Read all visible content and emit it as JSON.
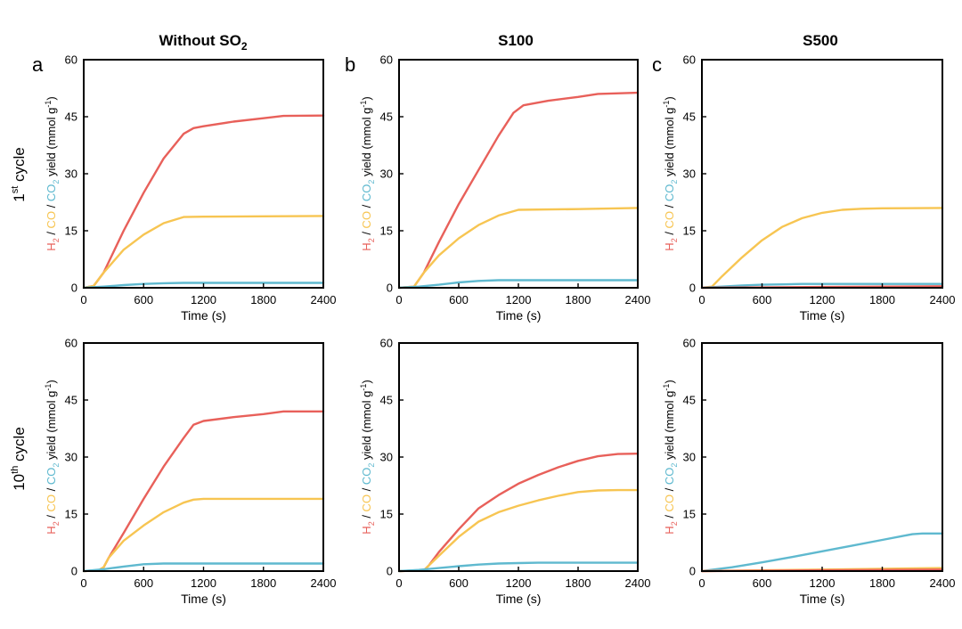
{
  "figure": {
    "column_titles": [
      {
        "main": "Without SO",
        "sub": "2"
      },
      {
        "main": "S100",
        "sub": ""
      },
      {
        "main": "S500",
        "sub": ""
      }
    ],
    "row_titles": [
      {
        "pre": "1",
        "sup": "st",
        "post": " cycle"
      },
      {
        "pre": "10",
        "sup": "th",
        "post": " cycle"
      }
    ],
    "panel_letters": [
      "a",
      "b",
      "c"
    ],
    "ylabel_parts": [
      {
        "text": "H",
        "color": "#e8605a"
      },
      {
        "text": "2",
        "color": "#e8605a",
        "sub": true
      },
      {
        "text": " / ",
        "color": "#000000"
      },
      {
        "text": "CO",
        "color": "#f7c552"
      },
      {
        "text": " / ",
        "color": "#000000"
      },
      {
        "text": "CO",
        "color": "#5fb9cf"
      },
      {
        "text": "2",
        "color": "#5fb9cf",
        "sub": true
      },
      {
        "text": " yield (mmol g",
        "color": "#000000"
      },
      {
        "text": "-1",
        "color": "#000000",
        "sup": true
      },
      {
        "text": ")",
        "color": "#000000"
      }
    ],
    "xlabel": "Time (s)"
  },
  "chart_data": [
    {
      "type": "line",
      "panel": "a-1st",
      "column": "Without SO2",
      "row": "1st cycle",
      "xlabel": "Time (s)",
      "ylabel": "H2 / CO / CO2 yield (mmol g-1)",
      "xlim": [
        0,
        2400
      ],
      "ylim": [
        0,
        60
      ],
      "xticks": [
        0,
        600,
        1200,
        1800,
        2400
      ],
      "yticks": [
        0,
        15,
        30,
        45,
        60
      ],
      "series": [
        {
          "name": "H2",
          "color": "#e8605a",
          "x": [
            0,
            100,
            200,
            400,
            600,
            800,
            1000,
            1100,
            1200,
            1500,
            1800,
            2000,
            2400
          ],
          "y": [
            0,
            0.5,
            4,
            15,
            25,
            34,
            40.5,
            42,
            42.5,
            43.7,
            44.6,
            45.2,
            45.3
          ]
        },
        {
          "name": "CO",
          "color": "#f7c552",
          "x": [
            0,
            100,
            200,
            400,
            600,
            800,
            1000,
            1200,
            1800,
            2400
          ],
          "y": [
            0,
            0.5,
            4,
            10,
            14,
            17,
            18.6,
            18.7,
            18.8,
            18.9
          ]
        },
        {
          "name": "CO2",
          "color": "#5fb9cf",
          "x": [
            0,
            200,
            400,
            600,
            800,
            1000,
            2400
          ],
          "y": [
            0,
            0.3,
            0.7,
            1,
            1.2,
            1.3,
            1.3
          ]
        }
      ]
    },
    {
      "type": "line",
      "panel": "b-1st",
      "column": "S100",
      "row": "1st cycle",
      "xlabel": "Time (s)",
      "ylabel": "H2 / CO / CO2 yield (mmol g-1)",
      "xlim": [
        0,
        2400
      ],
      "ylim": [
        0,
        60
      ],
      "xticks": [
        0,
        600,
        1200,
        1800,
        2400
      ],
      "yticks": [
        0,
        15,
        30,
        45,
        60
      ],
      "series": [
        {
          "name": "H2",
          "color": "#e8605a",
          "x": [
            0,
            150,
            250,
            400,
            600,
            800,
            1000,
            1150,
            1250,
            1500,
            1800,
            2000,
            2400
          ],
          "y": [
            0,
            0.3,
            4,
            12,
            22,
            31,
            40,
            46,
            48,
            49.2,
            50.2,
            51,
            51.3
          ]
        },
        {
          "name": "CO",
          "color": "#f7c552",
          "x": [
            0,
            150,
            250,
            400,
            600,
            800,
            1000,
            1200,
            1800,
            2400
          ],
          "y": [
            0,
            0.3,
            4,
            8.5,
            13,
            16.5,
            19,
            20.5,
            20.7,
            21
          ]
        },
        {
          "name": "CO2",
          "color": "#5fb9cf",
          "x": [
            0,
            200,
            400,
            600,
            800,
            1000,
            2400
          ],
          "y": [
            0,
            0.3,
            0.8,
            1.4,
            1.8,
            2,
            2
          ]
        }
      ]
    },
    {
      "type": "line",
      "panel": "c-1st",
      "column": "S500",
      "row": "1st cycle",
      "xlabel": "Time (s)",
      "ylabel": "H2 / CO / CO2 yield (mmol g-1)",
      "xlim": [
        0,
        2400
      ],
      "ylim": [
        0,
        60
      ],
      "xticks": [
        0,
        600,
        1200,
        1800,
        2400
      ],
      "yticks": [
        0,
        15,
        30,
        45,
        60
      ],
      "series": [
        {
          "name": "CO",
          "color": "#f7c552",
          "x": [
            0,
            100,
            200,
            400,
            600,
            800,
            1000,
            1200,
            1400,
            1600,
            1800,
            2400
          ],
          "y": [
            0,
            0.3,
            3,
            8,
            12.5,
            16,
            18.3,
            19.7,
            20.5,
            20.8,
            20.9,
            21
          ]
        },
        {
          "name": "CO2",
          "color": "#5fb9cf",
          "x": [
            0,
            200,
            400,
            600,
            800,
            1000,
            2400
          ],
          "y": [
            0,
            0.3,
            0.6,
            0.8,
            0.9,
            1,
            1
          ]
        },
        {
          "name": "H2",
          "color": "#e8605a",
          "x": [
            0,
            600,
            1200,
            1800,
            2400
          ],
          "y": [
            0,
            0.1,
            0.2,
            0.3,
            0.4
          ]
        }
      ]
    },
    {
      "type": "line",
      "panel": "a-10th",
      "column": "Without SO2",
      "row": "10th cycle",
      "xlabel": "Time (s)",
      "ylabel": "H2 / CO / CO2 yield (mmol g-1)",
      "xlim": [
        0,
        2400
      ],
      "ylim": [
        0,
        60
      ],
      "xticks": [
        0,
        600,
        1200,
        1800,
        2400
      ],
      "yticks": [
        0,
        15,
        30,
        45,
        60
      ],
      "series": [
        {
          "name": "H2",
          "color": "#e8605a",
          "x": [
            0,
            150,
            200,
            250,
            400,
            600,
            800,
            1000,
            1100,
            1200,
            1500,
            1800,
            2000,
            2400
          ],
          "y": [
            0,
            0.2,
            1,
            3.5,
            10,
            19,
            27.5,
            35,
            38.5,
            39.5,
            40.5,
            41.3,
            42,
            42
          ]
        },
        {
          "name": "CO",
          "color": "#f7c552",
          "x": [
            0,
            150,
            200,
            250,
            400,
            600,
            800,
            1000,
            1100,
            1200,
            1800,
            2400
          ],
          "y": [
            0,
            0.2,
            1,
            3.5,
            8,
            12,
            15.5,
            18,
            18.8,
            19,
            19,
            19
          ]
        },
        {
          "name": "CO2",
          "color": "#5fb9cf",
          "x": [
            0,
            200,
            400,
            600,
            800,
            2400
          ],
          "y": [
            0,
            0.5,
            1.2,
            1.8,
            2,
            2
          ]
        }
      ]
    },
    {
      "type": "line",
      "panel": "b-10th",
      "column": "S100",
      "row": "10th cycle",
      "xlabel": "Time (s)",
      "ylabel": "H2 / CO / CO2 yield (mmol g-1)",
      "xlim": [
        0,
        2400
      ],
      "ylim": [
        0,
        60
      ],
      "xticks": [
        0,
        600,
        1200,
        1800,
        2400
      ],
      "yticks": [
        0,
        15,
        30,
        45,
        60
      ],
      "series": [
        {
          "name": "H2",
          "color": "#e8605a",
          "x": [
            0,
            250,
            300,
            400,
            600,
            800,
            1000,
            1200,
            1400,
            1600,
            1800,
            2000,
            2200,
            2400
          ],
          "y": [
            0,
            0.2,
            1.5,
            5,
            11,
            16.5,
            20,
            23,
            25.3,
            27.3,
            29,
            30.2,
            30.8,
            30.9
          ]
        },
        {
          "name": "CO",
          "color": "#f7c552",
          "x": [
            0,
            250,
            300,
            400,
            600,
            800,
            1000,
            1200,
            1400,
            1600,
            1800,
            2000,
            2200,
            2400
          ],
          "y": [
            0,
            0.2,
            1.5,
            4,
            9,
            13,
            15.5,
            17.2,
            18.6,
            19.8,
            20.8,
            21.2,
            21.3,
            21.3
          ]
        },
        {
          "name": "CO2",
          "color": "#5fb9cf",
          "x": [
            0,
            200,
            400,
            600,
            800,
            1000,
            1200,
            1400,
            2400
          ],
          "y": [
            0,
            0.3,
            0.8,
            1.3,
            1.7,
            2,
            2.1,
            2.2,
            2.2
          ]
        }
      ]
    },
    {
      "type": "line",
      "panel": "c-10th",
      "column": "S500",
      "row": "10th cycle",
      "xlabel": "Time (s)",
      "ylabel": "H2 / CO / CO2 yield (mmol g-1)",
      "xlim": [
        0,
        2400
      ],
      "ylim": [
        0,
        60
      ],
      "xticks": [
        0,
        600,
        1200,
        1800,
        2400
      ],
      "yticks": [
        0,
        15,
        30,
        45,
        60
      ],
      "series": [
        {
          "name": "CO2",
          "color": "#5fb9cf",
          "x": [
            0,
            300,
            600,
            900,
            1200,
            1500,
            1800,
            2000,
            2100,
            2200,
            2400
          ],
          "y": [
            0,
            1,
            2.3,
            3.7,
            5.2,
            6.7,
            8.2,
            9.2,
            9.7,
            9.9,
            9.9
          ]
        },
        {
          "name": "CO",
          "color": "#f7c552",
          "x": [
            0,
            600,
            1200,
            1800,
            2400
          ],
          "y": [
            0,
            0.2,
            0.4,
            0.6,
            0.8
          ]
        },
        {
          "name": "H2",
          "color": "#e8605a",
          "x": [
            0,
            600,
            1200,
            1800,
            2400
          ],
          "y": [
            0,
            0.1,
            0.2,
            0.3,
            0.4
          ]
        }
      ]
    }
  ]
}
